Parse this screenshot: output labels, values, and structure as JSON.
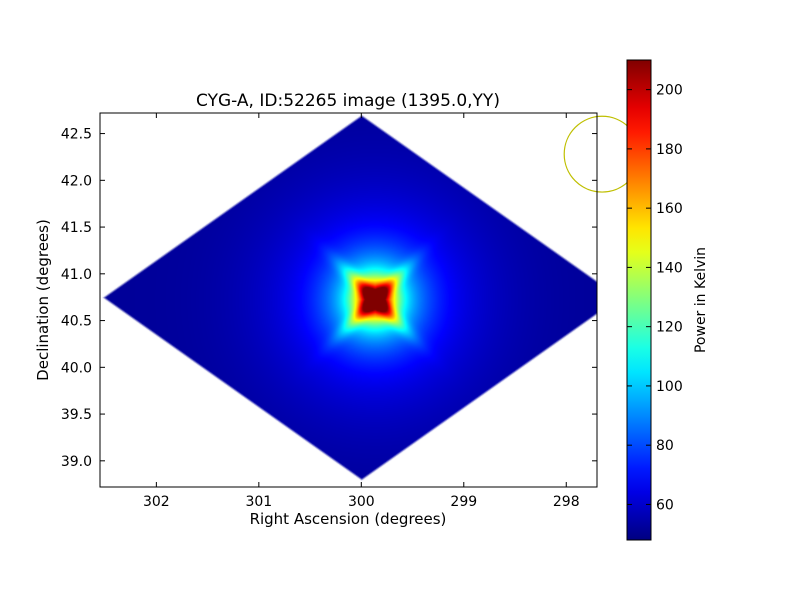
{
  "chart_data": {
    "type": "heatmap",
    "title": "CYG-A, ID:52265 image (1395.0,YY)",
    "xlabel": "Right Ascension (degrees)",
    "ylabel": "Declination (degrees)",
    "x_inverted": true,
    "xlim": [
      302.55,
      297.7
    ],
    "ylim": [
      38.72,
      42.72
    ],
    "x_ticks": [
      302,
      301,
      300,
      299,
      298
    ],
    "y_ticks": [
      39.0,
      39.5,
      40.0,
      40.5,
      41.0,
      41.5,
      42.0,
      42.5
    ],
    "x_tick_labels": [
      "302",
      "301",
      "300",
      "299",
      "298"
    ],
    "y_tick_labels": [
      "39.0",
      "39.5",
      "40.0",
      "40.5",
      "41.0",
      "41.5",
      "42.0",
      "42.5"
    ],
    "colormap": "jet",
    "colorbar": {
      "label": "Power in Kelvin",
      "vmin": 48,
      "vmax": 210,
      "ticks": [
        60,
        80,
        100,
        120,
        140,
        160,
        180,
        200
      ],
      "tick_labels": [
        "60",
        "80",
        "100",
        "120",
        "140",
        "160",
        "180",
        "200"
      ]
    },
    "footprint_diamond": {
      "center": [
        300.0,
        40.75
      ],
      "west": [
        302.55,
        40.75
      ],
      "east": [
        297.48,
        40.75
      ],
      "north": [
        300.0,
        42.7
      ],
      "south": [
        300.0,
        38.78
      ]
    },
    "source": {
      "ra": 299.87,
      "dec": 40.73,
      "peak": 210,
      "background": 52
    },
    "beam_circle": {
      "ra": 297.65,
      "dec": 42.28,
      "radius_deg": 0.37,
      "color": "#bfbf00"
    }
  }
}
